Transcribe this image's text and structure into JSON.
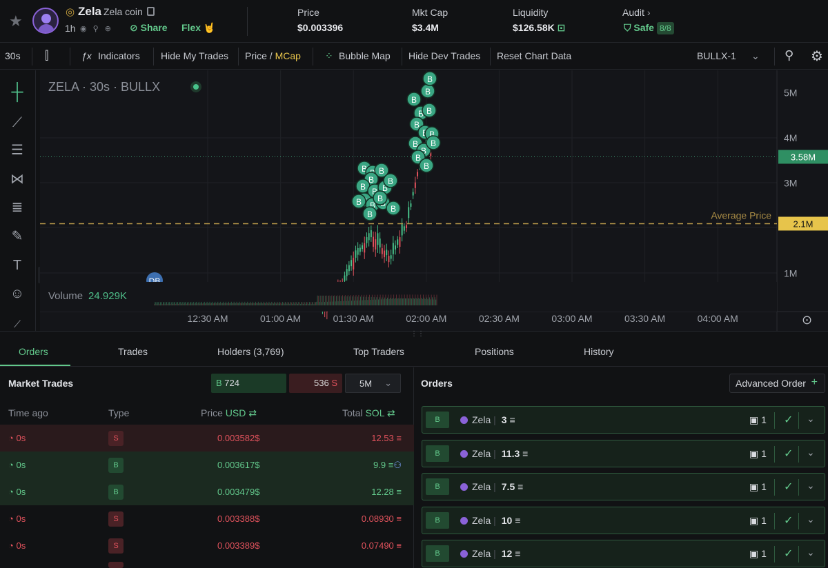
{
  "header": {
    "token_symbol": "Zela",
    "token_name": "Zela coin",
    "age": "1h",
    "share_label": "Share",
    "flex_label": "Flex 🤘",
    "stats": [
      {
        "label": "Price",
        "value": "$0.003396"
      },
      {
        "label": "Mkt Cap",
        "value": "$3.4M"
      },
      {
        "label": "Liquidity",
        "value": "$126.58K"
      }
    ],
    "audit_label": "Audit",
    "audit_status": "Safe",
    "audit_score": "8/8"
  },
  "toolbar": {
    "interval": "30s",
    "indicators": "Indicators",
    "hide_my_trades": "Hide My Trades",
    "price_label": "Price",
    "slash": "/",
    "mcap_label": "MCap",
    "bubble_map": "Bubble Map",
    "hide_dev_trades": "Hide Dev Trades",
    "reset_chart": "Reset Chart Data",
    "layout_select": "BULLX-1"
  },
  "chart": {
    "legend": "ZELA · 30s · BULLX",
    "volume_label": "Volume",
    "volume_value": "24.929K",
    "average_price_label": "Average Price",
    "current_tag": "3.58M",
    "average_tag": "2.1M",
    "y_ticks": [
      "5M",
      "4M",
      "3M",
      "1M"
    ],
    "x_ticks": [
      "12:30 AM",
      "01:00 AM",
      "01:30 AM",
      "02:00 AM",
      "02:30 AM",
      "03:00 AM",
      "03:30 AM",
      "04:00 AM"
    ],
    "buy_marker": "B",
    "dev_marker": "DB"
  },
  "chart_data": {
    "type": "candlestick",
    "y_unit": "market cap (USD)",
    "ylim": [
      0,
      5500000
    ],
    "current_value": 3580000,
    "average_price": 2100000,
    "y_ticks": [
      1000000,
      3000000,
      4000000,
      5000000
    ],
    "x_ticks": [
      "12:30 AM",
      "01:00 AM",
      "01:30 AM",
      "02:00 AM",
      "02:30 AM",
      "03:00 AM",
      "03:30 AM",
      "04:00 AM"
    ],
    "close_trend": [
      {
        "t": "01:17 AM",
        "mcap": 200000
      },
      {
        "t": "01:25 AM",
        "mcap": 700000
      },
      {
        "t": "01:30 AM",
        "mcap": 1300000
      },
      {
        "t": "01:37 AM",
        "mcap": 1800000
      },
      {
        "t": "01:45 AM",
        "mcap": 1300000
      },
      {
        "t": "01:52 AM",
        "mcap": 2100000
      },
      {
        "t": "01:56 AM",
        "mcap": 3200000
      },
      {
        "t": "02:00 AM",
        "mcap": 3900000
      },
      {
        "t": "02:02 AM",
        "mcap": 3580000
      }
    ]
  },
  "tabs": [
    {
      "label": "Orders"
    },
    {
      "label": "Trades"
    },
    {
      "label": "Holders (3,769)"
    },
    {
      "label": "Top Traders"
    },
    {
      "label": "Positions"
    },
    {
      "label": "History"
    }
  ],
  "market_trades": {
    "title": "Market Trades",
    "buy_label": "B",
    "buy_count": "724",
    "sell_count": "536",
    "sell_label": "S",
    "timeframe": "5M",
    "headers": {
      "time": "Time ago",
      "type": "Type",
      "price": "Price",
      "price_unit": "USD",
      "total": "Total",
      "total_unit": "SOL"
    },
    "rows": [
      {
        "ago": "0s",
        "type": "S",
        "price": "0.003582$",
        "total": "12.53"
      },
      {
        "ago": "0s",
        "type": "B",
        "price": "0.003617$",
        "total": "9.9"
      },
      {
        "ago": "0s",
        "type": "B",
        "price": "0.003479$",
        "total": "12.28"
      },
      {
        "ago": "0s",
        "type": "S",
        "price": "0.003388$",
        "total": "0.08930"
      },
      {
        "ago": "0s",
        "type": "S",
        "price": "0.003389$",
        "total": "0.07490"
      }
    ]
  },
  "orders": {
    "title": "Orders",
    "advanced_order": "Advanced Order",
    "items": [
      {
        "side": "B",
        "user": "Zela",
        "amount": "3",
        "count": "1"
      },
      {
        "side": "B",
        "user": "Zela",
        "amount": "11.3",
        "count": "1"
      },
      {
        "side": "B",
        "user": "Zela",
        "amount": "7.5",
        "count": "1"
      },
      {
        "side": "B",
        "user": "Zela",
        "amount": "10",
        "count": "1"
      },
      {
        "side": "B",
        "user": "Zela",
        "amount": "12",
        "count": "1"
      }
    ]
  },
  "colors": {
    "accent_green": "#63c98c",
    "sell_red": "#e0525c",
    "mcap_gold": "#e7c44b",
    "candle_up": "#48c28a",
    "candle_down": "#e0525c",
    "avg_line": "#b99a4a"
  }
}
